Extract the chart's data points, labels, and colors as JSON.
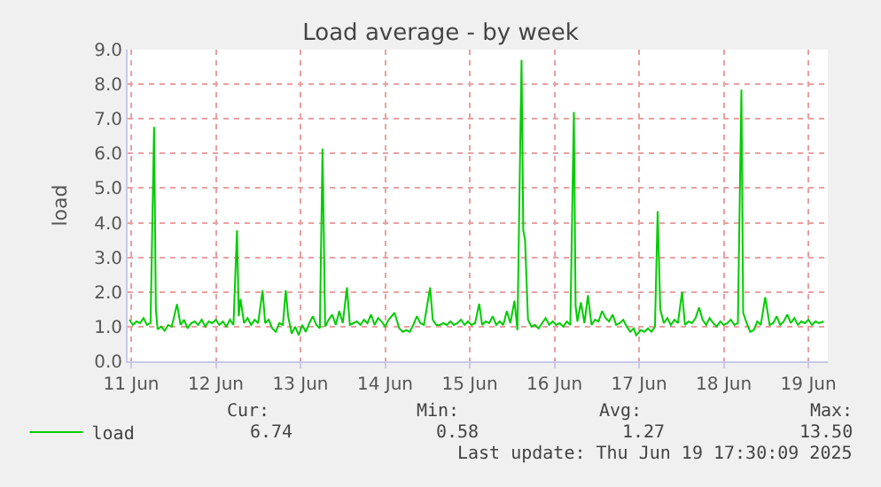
{
  "chart_data": {
    "type": "line",
    "title": "Load average - by week",
    "ylabel": "load",
    "x": [
      "2025-06-11T11:30",
      "2025-06-11T12:30",
      "2025-06-11T13:30",
      "2025-06-11T14:30",
      "2025-06-11T15:30",
      "2025-06-11T16:30",
      "2025-06-11T17:30",
      "2025-06-11T18:30",
      "2025-06-11T19:00",
      "2025-06-11T19:30",
      "2025-06-11T20:30",
      "2025-06-11T21:30",
      "2025-06-11T22:30",
      "2025-06-11T23:30",
      "2025-06-12T01:00",
      "2025-06-12T02:00",
      "2025-06-12T03:00",
      "2025-06-12T04:00",
      "2025-06-12T05:00",
      "2025-06-12T06:00",
      "2025-06-12T07:00",
      "2025-06-12T08:00",
      "2025-06-12T09:00",
      "2025-06-12T10:00",
      "2025-06-12T11:00",
      "2025-06-12T12:00",
      "2025-06-12T13:00",
      "2025-06-12T14:00",
      "2025-06-12T15:00",
      "2025-06-12T16:00",
      "2025-06-12T17:00",
      "2025-06-12T18:00",
      "2025-06-12T18:30",
      "2025-06-12T19:00",
      "2025-06-12T20:00",
      "2025-06-12T21:00",
      "2025-06-12T22:00",
      "2025-06-12T23:00",
      "2025-06-13T00:00",
      "2025-06-13T01:15",
      "2025-06-13T02:00",
      "2025-06-13T03:00",
      "2025-06-13T04:00",
      "2025-06-13T05:00",
      "2025-06-13T06:00",
      "2025-06-13T07:00",
      "2025-06-13T07:50",
      "2025-06-13T08:30",
      "2025-06-13T09:30",
      "2025-06-13T10:30",
      "2025-06-13T11:30",
      "2025-06-13T12:30",
      "2025-06-13T13:30",
      "2025-06-13T14:30",
      "2025-06-13T15:30",
      "2025-06-13T16:30",
      "2025-06-13T17:30",
      "2025-06-13T18:15",
      "2025-06-13T19:00",
      "2025-06-13T20:00",
      "2025-06-13T21:00",
      "2025-06-13T22:00",
      "2025-06-13T23:00",
      "2025-06-14T00:00",
      "2025-06-14T01:10",
      "2025-06-14T02:00",
      "2025-06-14T03:00",
      "2025-06-14T04:00",
      "2025-06-14T05:00",
      "2025-06-14T06:00",
      "2025-06-14T07:00",
      "2025-06-14T08:00",
      "2025-06-14T09:00",
      "2025-06-14T10:00",
      "2025-06-14T11:00",
      "2025-06-14T12:00",
      "2025-06-14T13:00",
      "2025-06-14T14:40",
      "2025-06-14T16:00",
      "2025-06-14T17:00",
      "2025-06-14T18:00",
      "2025-06-14T19:00",
      "2025-06-14T20:00",
      "2025-06-14T21:00",
      "2025-06-14T22:00",
      "2025-06-14T23:00",
      "2025-06-15T00:45",
      "2025-06-15T01:30",
      "2025-06-15T02:30",
      "2025-06-15T03:30",
      "2025-06-15T04:30",
      "2025-06-15T05:30",
      "2025-06-15T06:30",
      "2025-06-15T07:30",
      "2025-06-15T08:30",
      "2025-06-15T09:30",
      "2025-06-15T10:30",
      "2025-06-15T11:30",
      "2025-06-15T12:30",
      "2025-06-15T13:30",
      "2025-06-15T14:40",
      "2025-06-15T15:30",
      "2025-06-15T16:30",
      "2025-06-15T17:30",
      "2025-06-15T18:30",
      "2025-06-15T19:30",
      "2025-06-15T20:30",
      "2025-06-15T21:30",
      "2025-06-15T22:30",
      "2025-06-15T23:30",
      "2025-06-16T00:40",
      "2025-06-16T01:30",
      "2025-06-16T02:40",
      "2025-06-16T03:10",
      "2025-06-16T03:40",
      "2025-06-16T04:30",
      "2025-06-16T05:30",
      "2025-06-16T06:30",
      "2025-06-16T07:30",
      "2025-06-16T08:30",
      "2025-06-16T09:30",
      "2025-06-16T10:30",
      "2025-06-16T11:30",
      "2025-06-16T12:30",
      "2025-06-16T13:30",
      "2025-06-16T14:30",
      "2025-06-16T15:30",
      "2025-06-16T16:30",
      "2025-06-16T17:30",
      "2025-06-16T18:00",
      "2025-06-16T18:30",
      "2025-06-16T19:30",
      "2025-06-16T20:30",
      "2025-06-16T21:30",
      "2025-06-16T22:30",
      "2025-06-16T23:30",
      "2025-06-17T00:30",
      "2025-06-17T01:30",
      "2025-06-17T02:30",
      "2025-06-17T03:30",
      "2025-06-17T04:30",
      "2025-06-17T05:30",
      "2025-06-17T06:30",
      "2025-06-17T07:30",
      "2025-06-17T08:30",
      "2025-06-17T09:30",
      "2025-06-17T10:30",
      "2025-06-17T11:10",
      "2025-06-17T12:30",
      "2025-06-17T13:30",
      "2025-06-17T14:30",
      "2025-06-17T15:30",
      "2025-06-17T16:30",
      "2025-06-17T17:15",
      "2025-06-17T18:00",
      "2025-06-17T19:00",
      "2025-06-17T20:00",
      "2025-06-17T21:00",
      "2025-06-17T22:00",
      "2025-06-17T23:00",
      "2025-06-18T00:10",
      "2025-06-18T01:00",
      "2025-06-18T02:00",
      "2025-06-18T03:00",
      "2025-06-18T04:00",
      "2025-06-18T05:00",
      "2025-06-18T06:00",
      "2025-06-18T07:00",
      "2025-06-18T08:00",
      "2025-06-18T09:00",
      "2025-06-18T10:00",
      "2025-06-18T11:00",
      "2025-06-18T12:00",
      "2025-06-18T13:00",
      "2025-06-18T14:00",
      "2025-06-18T15:00",
      "2025-06-18T16:00",
      "2025-06-18T17:00",
      "2025-06-18T17:30",
      "2025-06-18T18:30",
      "2025-06-18T19:30",
      "2025-06-18T20:30",
      "2025-06-18T21:30",
      "2025-06-18T22:30",
      "2025-06-18T23:45",
      "2025-06-19T01:00",
      "2025-06-19T02:00",
      "2025-06-19T03:00",
      "2025-06-19T04:00",
      "2025-06-19T05:00",
      "2025-06-19T06:00",
      "2025-06-19T07:00",
      "2025-06-19T08:00",
      "2025-06-19T09:00",
      "2025-06-19T10:00",
      "2025-06-19T11:00",
      "2025-06-19T12:00",
      "2025-06-19T13:00",
      "2025-06-19T14:00",
      "2025-06-19T15:00",
      "2025-06-19T16:20"
    ],
    "series": [
      {
        "name": "load",
        "color": "#00cc00",
        "values": [
          1.2,
          1.05,
          1.15,
          1.1,
          1.25,
          1.05,
          1.1,
          6.77,
          1.5,
          0.92,
          1.0,
          0.88,
          1.05,
          1.0,
          1.65,
          1.05,
          1.2,
          0.95,
          1.1,
          1.15,
          1.05,
          1.2,
          1.0,
          1.15,
          1.1,
          1.2,
          1.05,
          1.15,
          1.0,
          1.2,
          1.05,
          3.78,
          1.3,
          1.8,
          1.1,
          1.25,
          1.05,
          1.2,
          1.1,
          2.05,
          1.1,
          1.2,
          0.95,
          0.85,
          1.1,
          1.05,
          2.05,
          1.3,
          0.8,
          1.0,
          0.75,
          1.05,
          0.85,
          1.1,
          1.3,
          1.05,
          0.95,
          6.14,
          1.0,
          1.2,
          1.35,
          1.05,
          1.45,
          1.1,
          2.13,
          1.05,
          1.1,
          1.15,
          1.05,
          1.2,
          1.1,
          1.35,
          1.05,
          1.25,
          1.15,
          1.0,
          1.2,
          1.4,
          0.95,
          0.85,
          0.9,
          0.85,
          1.05,
          1.3,
          1.1,
          1.05,
          2.13,
          1.2,
          1.05,
          1.05,
          1.1,
          1.05,
          1.15,
          1.05,
          1.1,
          1.2,
          1.05,
          1.15,
          1.05,
          1.1,
          1.66,
          1.05,
          1.15,
          1.1,
          1.3,
          1.05,
          1.15,
          1.05,
          1.45,
          1.1,
          1.75,
          0.9,
          8.7,
          3.78,
          3.5,
          1.2,
          1.0,
          1.05,
          0.95,
          1.1,
          1.25,
          1.05,
          1.15,
          1.05,
          1.1,
          1.0,
          1.15,
          1.05,
          7.2,
          1.6,
          1.15,
          1.7,
          1.1,
          1.91,
          1.05,
          1.2,
          1.15,
          1.45,
          1.25,
          1.15,
          1.35,
          1.05,
          1.1,
          1.2,
          1.0,
          0.85,
          0.95,
          0.75,
          0.9,
          0.85,
          0.95,
          0.85,
          1.0,
          4.33,
          1.5,
          1.1,
          1.25,
          1.05,
          1.2,
          1.1,
          2.0,
          1.05,
          1.15,
          1.1,
          1.25,
          1.55,
          1.2,
          1.05,
          1.25,
          1.1,
          1.0,
          1.15,
          1.05,
          1.1,
          1.2,
          1.05,
          1.1,
          7.84,
          1.4,
          1.1,
          0.85,
          0.9,
          1.15,
          1.05,
          1.85,
          1.05,
          1.1,
          1.3,
          1.05,
          1.15,
          1.35,
          1.1,
          1.25,
          1.05,
          1.15,
          1.1,
          1.2,
          1.05,
          1.15,
          1.1,
          1.15
        ]
      }
    ],
    "xlim": [
      "2025-06-11T11:00",
      "2025-06-19T17:30"
    ],
    "xticks": [
      {
        "value": "2025-06-11T12:00",
        "label": "11 Jun"
      },
      {
        "value": "2025-06-12T12:00",
        "label": "12 Jun"
      },
      {
        "value": "2025-06-13T12:00",
        "label": "13 Jun"
      },
      {
        "value": "2025-06-14T12:00",
        "label": "14 Jun"
      },
      {
        "value": "2025-06-15T12:00",
        "label": "15 Jun"
      },
      {
        "value": "2025-06-16T12:00",
        "label": "16 Jun"
      },
      {
        "value": "2025-06-17T12:00",
        "label": "17 Jun"
      },
      {
        "value": "2025-06-18T12:00",
        "label": "18 Jun"
      },
      {
        "value": "2025-06-19T12:00",
        "label": "19 Jun"
      }
    ],
    "ylim": [
      0,
      9
    ],
    "yticks": [
      {
        "value": 0,
        "label": "0.0"
      },
      {
        "value": 1,
        "label": "1.0"
      },
      {
        "value": 2,
        "label": "2.0"
      },
      {
        "value": 3,
        "label": "3.0"
      },
      {
        "value": 4,
        "label": "4.0"
      },
      {
        "value": 5,
        "label": "5.0"
      },
      {
        "value": 6,
        "label": "6.0"
      },
      {
        "value": 7,
        "label": "7.0"
      },
      {
        "value": 8,
        "label": "8.0"
      },
      {
        "value": 9,
        "label": "9.0"
      }
    ],
    "grid": true,
    "legend": "bottom left",
    "marker": "none",
    "line_style": "solid",
    "annotations": [
      "Cur:",
      "Min:",
      "Avg:",
      "Max:",
      "6.74",
      "0.58",
      "1.27",
      "13.50",
      "Last update: Thu Jun 19 17:30:09 2025"
    ]
  }
}
